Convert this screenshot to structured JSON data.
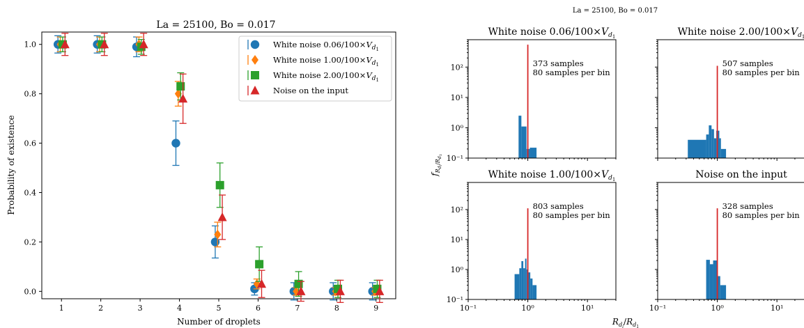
{
  "chart_data": [
    {
      "type": "scatter",
      "title": "La = 25100, Bo = 0.017",
      "xlabel": "Number of droplets",
      "ylabel": "Probability of existence",
      "xlim": [
        0.5,
        9.5
      ],
      "ylim": [
        -0.03,
        1.05
      ],
      "x_ticks": [
        "1",
        "2",
        "3",
        "4",
        "5",
        "6",
        "7",
        "8",
        "9"
      ],
      "y_ticks": [
        "0.0",
        "0.2",
        "0.4",
        "0.6",
        "0.8",
        "1.0"
      ],
      "y_tick_values": [
        0.0,
        0.2,
        0.4,
        0.6,
        0.8,
        1.0
      ],
      "grid": false,
      "legend_position": "top-right",
      "x": [
        1,
        2,
        3,
        4,
        5,
        6,
        7,
        8,
        9
      ],
      "series": [
        {
          "name": "White noise 0.06/100×V_{d_1}",
          "name_html": "White noise 0.06/100×<tspan font-style='italic'>V</tspan><tspan font-style='italic' font-size='9' dy='3'>d</tspan><tspan font-size='7' dy='2'>1</tspan>",
          "color": "#1f77b4",
          "marker": "circle",
          "offset": -0.09,
          "values": [
            1.0,
            1.0,
            0.99,
            0.6,
            0.2,
            0.01,
            0.0,
            0.0,
            0.0
          ],
          "errors": [
            0.035,
            0.035,
            0.04,
            0.09,
            0.065,
            0.025,
            0.035,
            0.035,
            0.035
          ]
        },
        {
          "name": "White noise 1.00/100×V_{d_1}",
          "name_html": "White noise 1.00/100×<tspan font-style='italic'>V</tspan><tspan font-style='italic' font-size='9' dy='3'>d</tspan><tspan font-size='7' dy='2'>1</tspan>",
          "color": "#ff7f0e",
          "marker": "diamond",
          "offset": -0.03,
          "values": [
            1.0,
            1.0,
            1.0,
            0.8,
            0.23,
            0.03,
            0.0,
            0.0,
            0.0
          ],
          "errors": [
            0.03,
            0.03,
            0.03,
            0.05,
            0.05,
            0.02,
            0.015,
            0.015,
            0.015
          ]
        },
        {
          "name": "White noise 2.00/100×V_{d_1}",
          "name_html": "White noise 2.00/100×<tspan font-style='italic'>V</tspan><tspan font-style='italic' font-size='9' dy='3'>d</tspan><tspan font-size='7' dy='2'>1</tspan>",
          "color": "#2ca02c",
          "marker": "square",
          "offset": 0.03,
          "values": [
            1.0,
            1.0,
            0.99,
            0.83,
            0.43,
            0.11,
            0.03,
            0.01,
            0.01
          ],
          "errors": [
            0.03,
            0.03,
            0.03,
            0.055,
            0.09,
            0.07,
            0.05,
            0.035,
            0.035
          ]
        },
        {
          "name": "Noise on the input",
          "name_html": "Noise on the input",
          "color": "#d62728",
          "marker": "triangle",
          "offset": 0.09,
          "values": [
            1.0,
            1.0,
            1.0,
            0.78,
            0.3,
            0.03,
            0.0,
            0.0,
            0.0
          ],
          "errors": [
            0.045,
            0.045,
            0.045,
            0.1,
            0.09,
            0.055,
            0.04,
            0.045,
            0.045
          ]
        }
      ]
    },
    {
      "type": "histogram",
      "title": "La = 25100, Bo = 0.017",
      "xlabel": "R_{d_i}/R_{d_1}",
      "ylabel": "f_{R_{d_i}/R_{d_1}}",
      "x_scale": "log",
      "y_scale": "log",
      "xlim": [
        0.1,
        30
      ],
      "ylim": [
        0.1,
        800
      ],
      "x_ticks": [
        "10⁻¹",
        "10⁰",
        "10¹"
      ],
      "y_ticks": [
        "10⁻¹",
        "10⁰",
        "10¹",
        "10²"
      ],
      "reference_line_x": 1.0,
      "reference_line_color": "#d62728",
      "panels": [
        {
          "title": "White noise 0.06/100×V_{d_1}",
          "title_html": "White noise 0.06/100×<tspan font-style='italic'>V</tspan><tspan font-style='italic' font-size='9' dy='3'>d</tspan><tspan font-size='7' dy='2'>1</tspan>",
          "samples_label": "373 samples",
          "bins_label": "80 samples per bin",
          "bins": [
            [
              0.7,
              0.78,
              2.5
            ],
            [
              0.78,
              0.95,
              1.1
            ],
            [
              0.95,
              1.08,
              0.2
            ],
            [
              1.08,
              1.4,
              0.22
            ]
          ]
        },
        {
          "title": "White noise 2.00/100×V_{d_1}",
          "title_html": "White noise 2.00/100×<tspan font-style='italic'>V</tspan><tspan font-style='italic' font-size='9' dy='3'>d</tspan><tspan font-size='7' dy='2'>1</tspan>",
          "samples_label": "507 samples",
          "bins_label": "80 samples per bin",
          "bins": [
            [
              0.32,
              0.65,
              0.4
            ],
            [
              0.65,
              0.72,
              0.6
            ],
            [
              0.72,
              0.8,
              1.2
            ],
            [
              0.8,
              0.88,
              0.9
            ],
            [
              0.88,
              0.96,
              0.45
            ],
            [
              0.96,
              1.08,
              0.8
            ],
            [
              1.08,
              1.15,
              0.45
            ],
            [
              1.15,
              1.4,
              0.2
            ]
          ]
        },
        {
          "title": "White noise 1.00/100×V_{d_1}",
          "title_html": "White noise 1.00/100×<tspan font-style='italic'>V</tspan><tspan font-style='italic' font-size='9' dy='3'>d</tspan><tspan font-size='7' dy='2'>1</tspan>",
          "samples_label": "803 samples",
          "bins_label": "80 samples per bin",
          "bins": [
            [
              0.6,
              0.72,
              0.7
            ],
            [
              0.72,
              0.78,
              1.1
            ],
            [
              0.78,
              0.84,
              1.9
            ],
            [
              0.84,
              0.9,
              1.1
            ],
            [
              0.9,
              0.95,
              2.3
            ],
            [
              0.95,
              1.02,
              1.0
            ],
            [
              1.02,
              1.1,
              0.8
            ],
            [
              1.1,
              1.2,
              0.5
            ],
            [
              1.2,
              1.4,
              0.3
            ]
          ]
        },
        {
          "title": "Noise on the input",
          "title_html": "Noise on the input",
          "samples_label": "328 samples",
          "bins_label": "80 samples per bin",
          "bins": [
            [
              0.65,
              0.75,
              2.1
            ],
            [
              0.75,
              0.85,
              1.5
            ],
            [
              0.85,
              1.0,
              2.0
            ],
            [
              1.0,
              1.12,
              0.6
            ],
            [
              1.12,
              1.4,
              0.3
            ]
          ]
        }
      ]
    }
  ]
}
